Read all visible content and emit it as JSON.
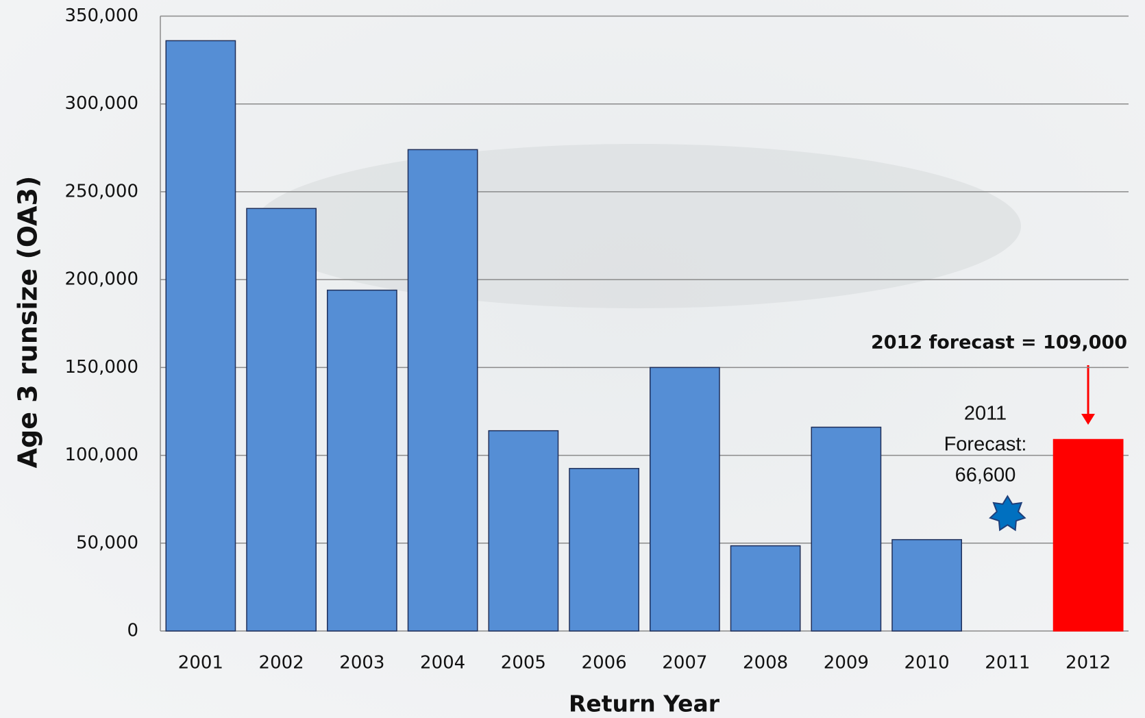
{
  "chart_data": {
    "type": "bar",
    "x_label": "Return Year",
    "y_label": "Age 3 runsize (OA3)",
    "categories": [
      "2001",
      "2002",
      "2003",
      "2004",
      "2005",
      "2006",
      "2007",
      "2008",
      "2009",
      "2010",
      "2011",
      "2012"
    ],
    "values": [
      336000,
      240500,
      194000,
      274000,
      114000,
      92500,
      150000,
      48500,
      116000,
      52000,
      null,
      109000
    ],
    "colors": [
      "#558ed5",
      "#558ed5",
      "#558ed5",
      "#558ed5",
      "#558ed5",
      "#558ed5",
      "#558ed5",
      "#558ed5",
      "#558ed5",
      "#558ed5",
      null,
      "#ff0000"
    ],
    "ylim": [
      0,
      350000
    ],
    "yticks": [
      0,
      {
        "value": 50000,
        "label": "50,000"
      },
      {
        "value": 100000,
        "label": "100,000"
      },
      {
        "value": 150000,
        "label": "150,000"
      },
      {
        "value": 200000,
        "label": "200,000"
      },
      {
        "value": 250000,
        "label": "250,000"
      },
      {
        "value": 300000,
        "label": "300,000"
      },
      {
        "value": 350000,
        "label": "350,000"
      }
    ],
    "grid": true,
    "annotations": [
      {
        "text": "2012 forecast = 109,000",
        "color": "#ff0000"
      },
      {
        "lines": [
          "2011",
          "Forecast:",
          "66,600"
        ],
        "category": "2011",
        "value": 66600,
        "color": "#0070c0"
      }
    ]
  }
}
